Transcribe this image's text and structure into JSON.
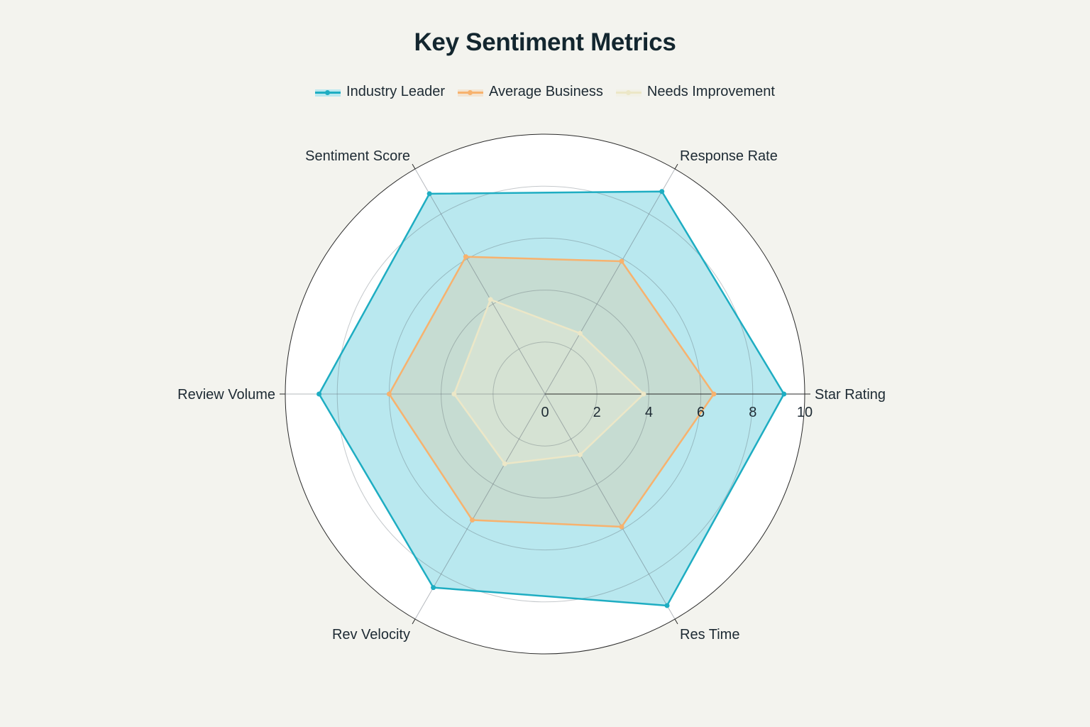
{
  "chart_data": {
    "type": "radar",
    "title": "Key Sentiment Metrics",
    "categories": [
      "Star Rating",
      "Response Rate",
      "Sentiment Score",
      "Review Volume",
      "Rev Velocity",
      "Res Time"
    ],
    "radial_ticks": [
      "0",
      "2",
      "4",
      "6",
      "8",
      "10"
    ],
    "rlim": [
      0,
      10
    ],
    "grid": true,
    "legend_position": "top-center",
    "series": [
      {
        "name": "Industry Leader",
        "values": [
          9.2,
          9.0,
          8.9,
          8.7,
          8.6,
          9.4
        ],
        "color": "#1eadc2",
        "fill": "#b9e8ef"
      },
      {
        "name": "Average Business",
        "values": [
          6.5,
          5.9,
          6.1,
          6.0,
          5.6,
          5.9
        ],
        "color": "#f7b26e",
        "fill": "rgba(247,178,110,0.22)"
      },
      {
        "name": "Needs Improvement",
        "values": [
          3.8,
          2.7,
          4.2,
          3.5,
          3.1,
          2.7
        ],
        "color": "#ece7c7",
        "fill": "rgba(242,238,214,0.35)"
      }
    ]
  }
}
